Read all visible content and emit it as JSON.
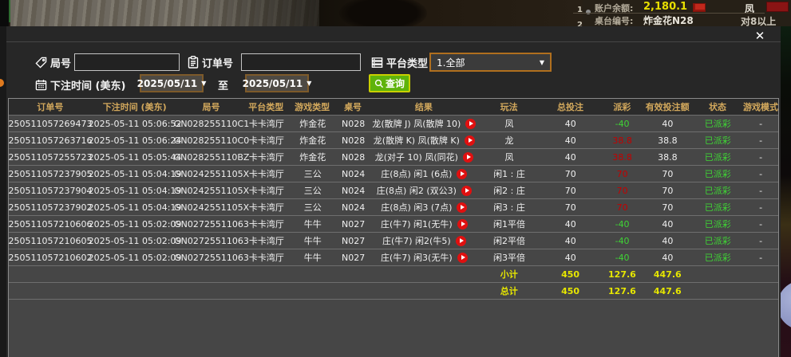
{
  "background": {
    "list_number_1": "1",
    "list_number_2": "2",
    "balance_label": "账户余额:",
    "balance_value": "2,180.1",
    "side_top": "凤",
    "table_label": "桌台编号:",
    "table_value": "炸金花N28",
    "side_bottom": "对8以上"
  },
  "modal": {
    "close_label": "✕",
    "filters": {
      "round_label": "局号",
      "round_value": "",
      "order_label": "订单号",
      "order_value": "",
      "platform_label": "平台类型",
      "platform_value": "1.全部",
      "dropdown_arrow": "▼",
      "bettime_label": "下注时间 (美东)",
      "date_from": "2025/05/11",
      "to_label": "至",
      "date_to": "2025/05/11",
      "search_label": "查询"
    },
    "table": {
      "headers": [
        "订单号",
        "下注时间 (美东)",
        "局号",
        "平台类型",
        "游戏类型",
        "桌号",
        "结果",
        "玩法",
        "总投注",
        "派彩",
        "有效投注额",
        "状态",
        "游戏模式"
      ],
      "rows": [
        {
          "order": "250511057269473",
          "time": "2025-05-11 05:06:52",
          "round": "GN028255110C1",
          "platform": "卡卡湾厅",
          "game": "炸金花",
          "table": "N028",
          "result": "龙(散牌 J) 凤(散牌 10)",
          "wanfa": "凤",
          "total": "40",
          "payout": "-40",
          "payout_color": "green",
          "valid": "40",
          "status": "已派彩",
          "mode": "-"
        },
        {
          "order": "250511057263716",
          "time": "2025-05-11 05:06:24",
          "round": "GN028255110C0",
          "platform": "卡卡湾厅",
          "game": "炸金花",
          "table": "N028",
          "result": "龙(散牌 K) 凤(散牌 K)",
          "wanfa": "龙",
          "total": "40",
          "payout": "38.8",
          "payout_color": "red",
          "valid": "38.8",
          "status": "已派彩",
          "mode": "-"
        },
        {
          "order": "250511057255723",
          "time": "2025-05-11 05:05:44",
          "round": "GN028255110BZ",
          "platform": "卡卡湾厅",
          "game": "炸金花",
          "table": "N028",
          "result": "龙(对子 10) 凤(同花)",
          "wanfa": "凤",
          "total": "40",
          "payout": "38.8",
          "payout_color": "red",
          "valid": "38.8",
          "status": "已派彩",
          "mode": "-"
        },
        {
          "order": "250511057237905",
          "time": "2025-05-11 05:04:19",
          "round": "GN0242551105X",
          "platform": "卡卡湾厅",
          "game": "三公",
          "table": "N024",
          "result": "庄(8点) 闲1 (6点)",
          "wanfa": "闲1 : 庄",
          "total": "70",
          "payout": "70",
          "payout_color": "red",
          "valid": "70",
          "status": "已派彩",
          "mode": "-"
        },
        {
          "order": "250511057237904",
          "time": "2025-05-11 05:04:19",
          "round": "GN0242551105X",
          "platform": "卡卡湾厅",
          "game": "三公",
          "table": "N024",
          "result": "庄(8点) 闲2 (双公3)",
          "wanfa": "闲2 : 庄",
          "total": "70",
          "payout": "70",
          "payout_color": "red",
          "valid": "70",
          "status": "已派彩",
          "mode": "-"
        },
        {
          "order": "250511057237902",
          "time": "2025-05-11 05:04:19",
          "round": "GN0242551105X",
          "platform": "卡卡湾厅",
          "game": "三公",
          "table": "N024",
          "result": "庄(8点) 闲3 (7点)",
          "wanfa": "闲3 : 庄",
          "total": "70",
          "payout": "70",
          "payout_color": "red",
          "valid": "70",
          "status": "已派彩",
          "mode": "-"
        },
        {
          "order": "250511057210606",
          "time": "2025-05-11 05:02:09",
          "round": "GN02725511063",
          "platform": "卡卡湾厅",
          "game": "牛牛",
          "table": "N027",
          "result": "庄(牛7) 闲1(无牛)",
          "wanfa": "闲1平倍",
          "total": "40",
          "payout": "-40",
          "payout_color": "green",
          "valid": "40",
          "status": "已派彩",
          "mode": "-"
        },
        {
          "order": "250511057210605",
          "time": "2025-05-11 05:02:09",
          "round": "GN02725511063",
          "platform": "卡卡湾厅",
          "game": "牛牛",
          "table": "N027",
          "result": "庄(牛7) 闲2(牛5)",
          "wanfa": "闲2平倍",
          "total": "40",
          "payout": "-40",
          "payout_color": "green",
          "valid": "40",
          "status": "已派彩",
          "mode": "-"
        },
        {
          "order": "250511057210602",
          "time": "2025-05-11 05:02:09",
          "round": "GN02725511063",
          "platform": "卡卡湾厅",
          "game": "牛牛",
          "table": "N027",
          "result": "庄(牛7) 闲3(无牛)",
          "wanfa": "闲3平倍",
          "total": "40",
          "payout": "-40",
          "payout_color": "green",
          "valid": "40",
          "status": "已派彩",
          "mode": "-"
        }
      ],
      "subtotal": {
        "label": "小计",
        "total": "450",
        "payout": "127.6",
        "valid": "447.6"
      },
      "grandtotal": {
        "label": "总计",
        "total": "450",
        "payout": "127.6",
        "valid": "447.6"
      }
    }
  },
  "colors": {
    "payout_win_red": "#c40000",
    "payout_loss_green": "#3fd435",
    "status_green": "#3fd435",
    "totals_yellow": "#e6e600",
    "header_gold": "#d2a85c",
    "search_button_green": "#5fb30c",
    "dropdown_border_orange": "#b06f1e",
    "balance_yellow": "#e8df00"
  }
}
